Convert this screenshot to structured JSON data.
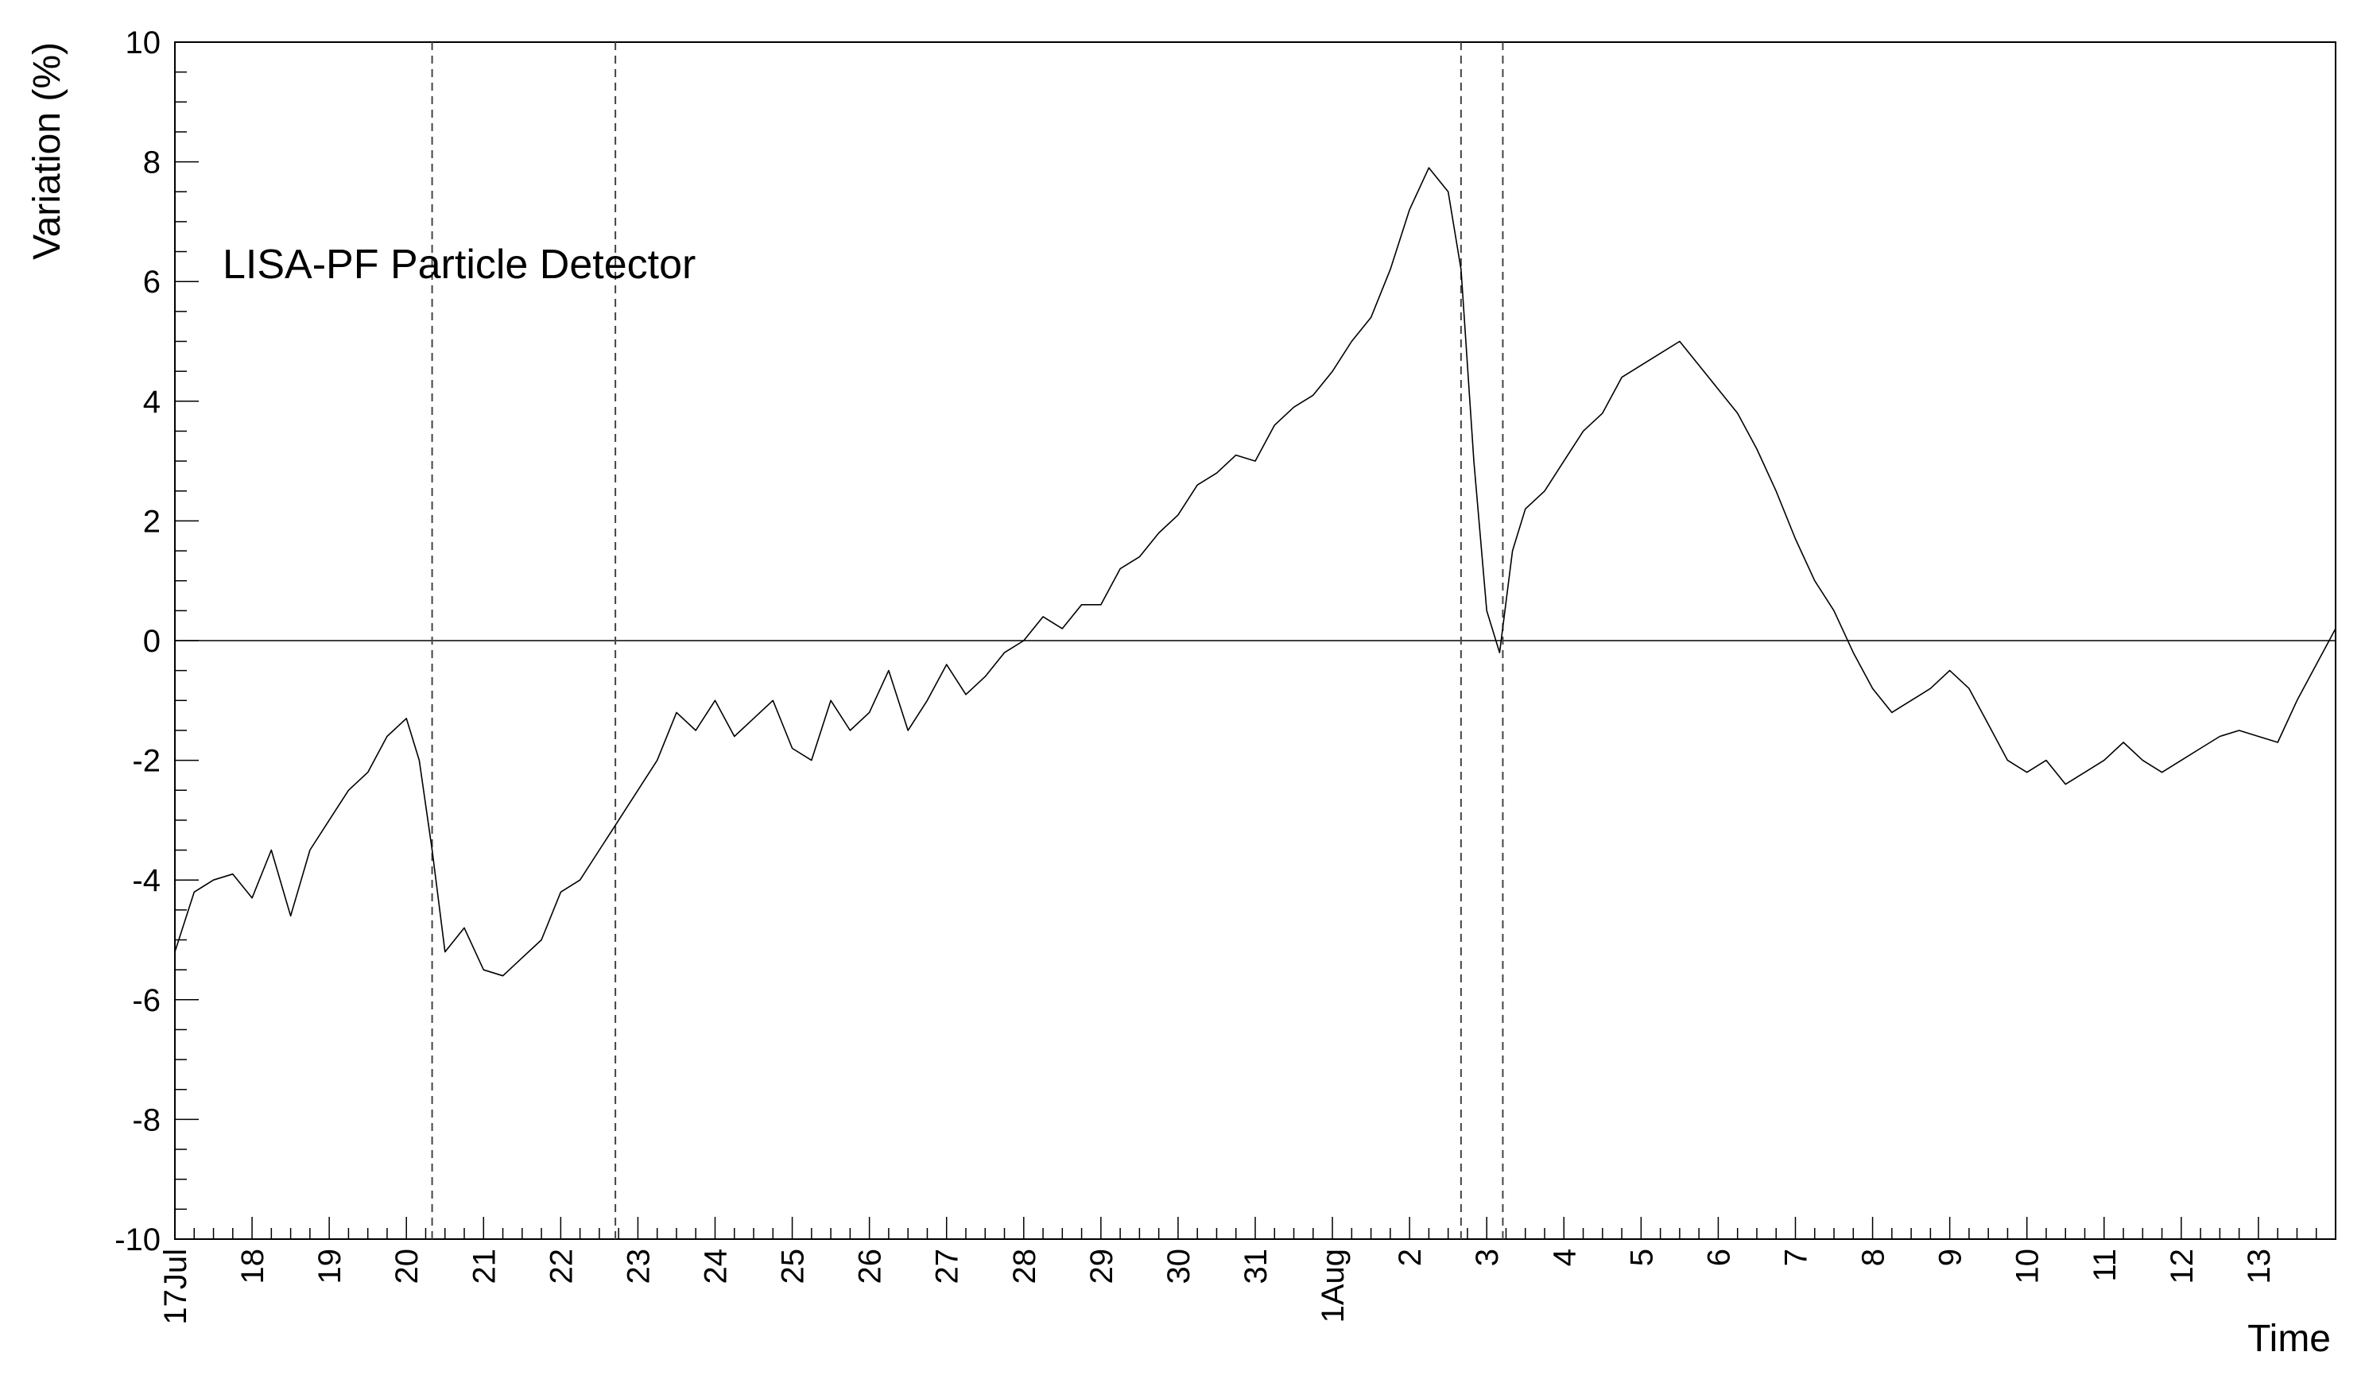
{
  "chart_data": {
    "type": "line",
    "annotation": "LISA-PF Particle Detector",
    "xlabel": "Time",
    "ylabel": "Variation (%)",
    "xlim": [
      "2017-07-17T00:00",
      "2017-08-14T00:00"
    ],
    "ylim": [
      -10,
      10
    ],
    "grid": false,
    "x_ticks": [
      "17Jul",
      "18",
      "19",
      "20",
      "21",
      "22",
      "23",
      "24",
      "25",
      "26",
      "27",
      "28",
      "29",
      "30",
      "31",
      "1Aug",
      "2",
      "3",
      "4",
      "5",
      "6",
      "7",
      "8",
      "9",
      "10",
      "11",
      "12",
      "13"
    ],
    "y_ticks": [
      "-10",
      "-8",
      "-6",
      "-4",
      "-2",
      "0",
      "2",
      "4",
      "6",
      "8",
      "10"
    ],
    "reference_lines": {
      "horizontal_y": 0,
      "vertical_dashed_x": [
        "2017-07-20T08:00",
        "2017-07-22T17:00",
        "2017-08-02T16:00",
        "2017-08-03T05:00"
      ]
    },
    "series": [
      {
        "color": "#000000",
        "points": [
          [
            "2017-07-17T00:00",
            -5.2
          ],
          [
            "2017-07-17T06:00",
            -4.2
          ],
          [
            "2017-07-17T12:00",
            -4.0
          ],
          [
            "2017-07-17T18:00",
            -3.9
          ],
          [
            "2017-07-18T00:00",
            -4.3
          ],
          [
            "2017-07-18T06:00",
            -3.5
          ],
          [
            "2017-07-18T12:00",
            -4.6
          ],
          [
            "2017-07-18T18:00",
            -3.5
          ],
          [
            "2017-07-19T00:00",
            -3.0
          ],
          [
            "2017-07-19T06:00",
            -2.5
          ],
          [
            "2017-07-19T12:00",
            -2.2
          ],
          [
            "2017-07-19T18:00",
            -1.6
          ],
          [
            "2017-07-20T00:00",
            -1.3
          ],
          [
            "2017-07-20T04:00",
            -2.0
          ],
          [
            "2017-07-20T08:00",
            -3.5
          ],
          [
            "2017-07-20T12:00",
            -5.2
          ],
          [
            "2017-07-20T18:00",
            -4.8
          ],
          [
            "2017-07-21T00:00",
            -5.5
          ],
          [
            "2017-07-21T06:00",
            -5.6
          ],
          [
            "2017-07-21T12:00",
            -5.3
          ],
          [
            "2017-07-21T18:00",
            -5.0
          ],
          [
            "2017-07-22T00:00",
            -4.2
          ],
          [
            "2017-07-22T06:00",
            -4.0
          ],
          [
            "2017-07-22T12:00",
            -3.5
          ],
          [
            "2017-07-22T18:00",
            -3.0
          ],
          [
            "2017-07-23T00:00",
            -2.5
          ],
          [
            "2017-07-23T06:00",
            -2.0
          ],
          [
            "2017-07-23T12:00",
            -1.2
          ],
          [
            "2017-07-23T18:00",
            -1.5
          ],
          [
            "2017-07-24T00:00",
            -1.0
          ],
          [
            "2017-07-24T06:00",
            -1.6
          ],
          [
            "2017-07-24T12:00",
            -1.3
          ],
          [
            "2017-07-24T18:00",
            -1.0
          ],
          [
            "2017-07-25T00:00",
            -1.8
          ],
          [
            "2017-07-25T06:00",
            -2.0
          ],
          [
            "2017-07-25T12:00",
            -1.0
          ],
          [
            "2017-07-25T18:00",
            -1.5
          ],
          [
            "2017-07-26T00:00",
            -1.2
          ],
          [
            "2017-07-26T06:00",
            -0.5
          ],
          [
            "2017-07-26T12:00",
            -1.5
          ],
          [
            "2017-07-26T18:00",
            -1.0
          ],
          [
            "2017-07-27T00:00",
            -0.4
          ],
          [
            "2017-07-27T06:00",
            -0.9
          ],
          [
            "2017-07-27T12:00",
            -0.6
          ],
          [
            "2017-07-27T18:00",
            -0.2
          ],
          [
            "2017-07-28T00:00",
            0.0
          ],
          [
            "2017-07-28T06:00",
            0.4
          ],
          [
            "2017-07-28T12:00",
            0.2
          ],
          [
            "2017-07-28T18:00",
            0.6
          ],
          [
            "2017-07-29T00:00",
            0.6
          ],
          [
            "2017-07-29T06:00",
            1.2
          ],
          [
            "2017-07-29T12:00",
            1.4
          ],
          [
            "2017-07-29T18:00",
            1.8
          ],
          [
            "2017-07-30T00:00",
            2.1
          ],
          [
            "2017-07-30T06:00",
            2.6
          ],
          [
            "2017-07-30T12:00",
            2.8
          ],
          [
            "2017-07-30T18:00",
            3.1
          ],
          [
            "2017-07-31T00:00",
            3.0
          ],
          [
            "2017-07-31T06:00",
            3.6
          ],
          [
            "2017-07-31T12:00",
            3.9
          ],
          [
            "2017-07-31T18:00",
            4.1
          ],
          [
            "2017-08-01T00:00",
            4.5
          ],
          [
            "2017-08-01T06:00",
            5.0
          ],
          [
            "2017-08-01T12:00",
            5.4
          ],
          [
            "2017-08-01T18:00",
            6.2
          ],
          [
            "2017-08-02T00:00",
            7.2
          ],
          [
            "2017-08-02T06:00",
            7.9
          ],
          [
            "2017-08-02T12:00",
            7.5
          ],
          [
            "2017-08-02T16:00",
            6.2
          ],
          [
            "2017-08-02T20:00",
            3.0
          ],
          [
            "2017-08-03T00:00",
            0.5
          ],
          [
            "2017-08-03T04:00",
            -0.2
          ],
          [
            "2017-08-03T08:00",
            1.5
          ],
          [
            "2017-08-03T12:00",
            2.2
          ],
          [
            "2017-08-03T18:00",
            2.5
          ],
          [
            "2017-08-04T00:00",
            3.0
          ],
          [
            "2017-08-04T06:00",
            3.5
          ],
          [
            "2017-08-04T12:00",
            3.8
          ],
          [
            "2017-08-04T18:00",
            4.4
          ],
          [
            "2017-08-05T00:00",
            4.6
          ],
          [
            "2017-08-05T06:00",
            4.8
          ],
          [
            "2017-08-05T12:00",
            5.0
          ],
          [
            "2017-08-05T18:00",
            4.6
          ],
          [
            "2017-08-06T00:00",
            4.2
          ],
          [
            "2017-08-06T06:00",
            3.8
          ],
          [
            "2017-08-06T12:00",
            3.2
          ],
          [
            "2017-08-06T18:00",
            2.5
          ],
          [
            "2017-08-07T00:00",
            1.7
          ],
          [
            "2017-08-07T06:00",
            1.0
          ],
          [
            "2017-08-07T12:00",
            0.5
          ],
          [
            "2017-08-07T18:00",
            -0.2
          ],
          [
            "2017-08-08T00:00",
            -0.8
          ],
          [
            "2017-08-08T06:00",
            -1.2
          ],
          [
            "2017-08-08T12:00",
            -1.0
          ],
          [
            "2017-08-08T18:00",
            -0.8
          ],
          [
            "2017-08-09T00:00",
            -0.5
          ],
          [
            "2017-08-09T06:00",
            -0.8
          ],
          [
            "2017-08-09T12:00",
            -1.4
          ],
          [
            "2017-08-09T18:00",
            -2.0
          ],
          [
            "2017-08-10T00:00",
            -2.2
          ],
          [
            "2017-08-10T06:00",
            -2.0
          ],
          [
            "2017-08-10T12:00",
            -2.4
          ],
          [
            "2017-08-10T18:00",
            -2.2
          ],
          [
            "2017-08-11T00:00",
            -2.0
          ],
          [
            "2017-08-11T06:00",
            -1.7
          ],
          [
            "2017-08-11T12:00",
            -2.0
          ],
          [
            "2017-08-11T18:00",
            -2.2
          ],
          [
            "2017-08-12T00:00",
            -2.0
          ],
          [
            "2017-08-12T06:00",
            -1.8
          ],
          [
            "2017-08-12T12:00",
            -1.6
          ],
          [
            "2017-08-12T18:00",
            -1.5
          ],
          [
            "2017-08-13T00:00",
            -1.6
          ],
          [
            "2017-08-13T06:00",
            -1.7
          ],
          [
            "2017-08-13T12:00",
            -1.0
          ],
          [
            "2017-08-13T18:00",
            -0.4
          ],
          [
            "2017-08-14T00:00",
            0.2
          ]
        ]
      }
    ]
  }
}
